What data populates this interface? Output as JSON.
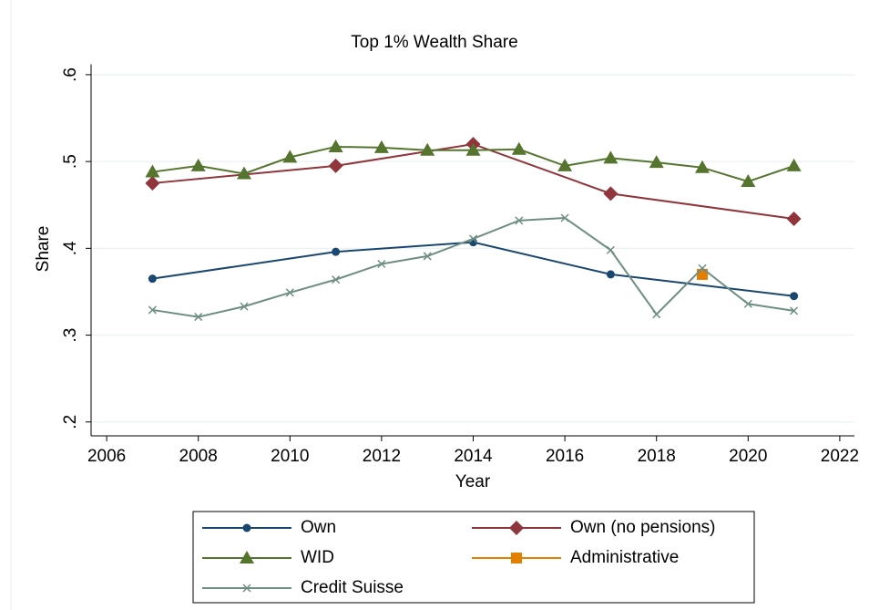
{
  "chart_data": {
    "type": "line",
    "title": "Top 1% Wealth Share",
    "xlabel": "Year",
    "ylabel": "Share",
    "xlim": [
      2005.66,
      2022.32
    ],
    "xticks": [
      2006,
      2008,
      2010,
      2012,
      2014,
      2016,
      2018,
      2020,
      2022
    ],
    "ylim": [
      0.184,
      0.612
    ],
    "yticks": [
      {
        "value": 0.2,
        "label": ".2"
      },
      {
        "value": 0.3,
        "label": ".3"
      },
      {
        "value": 0.4,
        "label": ".4"
      },
      {
        "value": 0.5,
        "label": ".5"
      },
      {
        "value": 0.6,
        "label": ".6"
      }
    ],
    "grid": true,
    "legend": "bottom",
    "series": [
      {
        "name": "Own",
        "color": "#1a476f",
        "marker": "circle",
        "x": [
          2007,
          2011,
          2014,
          2017,
          2021
        ],
        "values": [
          0.365,
          0.396,
          0.407,
          0.37,
          0.345
        ]
      },
      {
        "name": "Own (no pensions)",
        "color": "#90353b",
        "marker": "diamond",
        "x": [
          2007,
          2011,
          2014,
          2017,
          2021
        ],
        "values": [
          0.475,
          0.495,
          0.52,
          0.463,
          0.434
        ]
      },
      {
        "name": "WID",
        "color": "#55752f",
        "marker": "triangle",
        "x": [
          2007,
          2008,
          2009,
          2010,
          2011,
          2012,
          2013,
          2014,
          2015,
          2016,
          2017,
          2018,
          2019,
          2020,
          2021
        ],
        "values": [
          0.488,
          0.495,
          0.486,
          0.505,
          0.517,
          0.516,
          0.513,
          0.513,
          0.514,
          0.495,
          0.504,
          0.499,
          0.493,
          0.477,
          0.495
        ]
      },
      {
        "name": "Administrative",
        "color": "#e37e00",
        "marker": "square",
        "x": [
          2019
        ],
        "values": [
          0.37
        ]
      },
      {
        "name": "Credit Suisse",
        "color": "#6e8e84",
        "marker": "x",
        "x": [
          2007,
          2008,
          2009,
          2010,
          2011,
          2012,
          2013,
          2014,
          2015,
          2016,
          2017,
          2018,
          2019,
          2020,
          2021
        ],
        "values": [
          0.329,
          0.321,
          0.333,
          0.349,
          0.364,
          0.382,
          0.391,
          0.411,
          0.432,
          0.435,
          0.398,
          0.324,
          0.377,
          0.336,
          0.328
        ]
      }
    ]
  }
}
